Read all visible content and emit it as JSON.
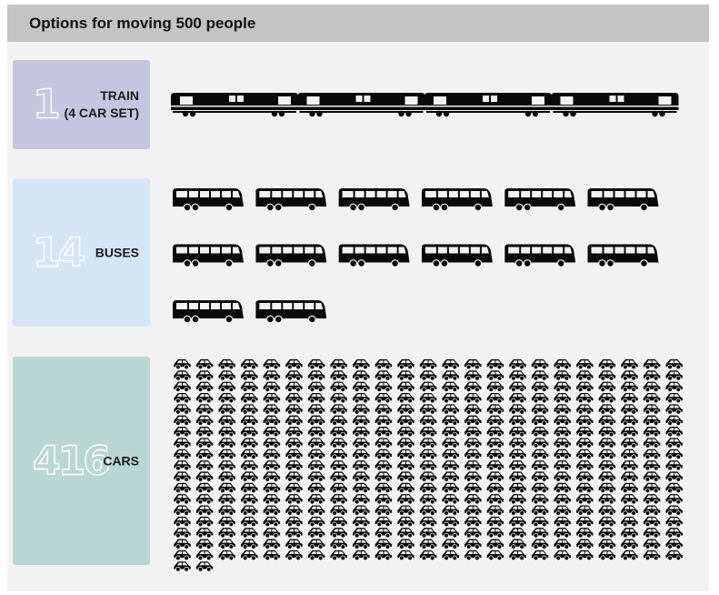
{
  "title": "Options for moving 500 people",
  "colors": {
    "train_box": "#c6c5e0",
    "bus_box": "#d6e5f6",
    "car_box": "#b9d7d2",
    "icon": "#0a0a0a"
  },
  "chart_data": {
    "type": "pictogram",
    "title": "Options for moving 500 people",
    "categories": [
      {
        "key": "train",
        "count_label": "1",
        "label_lines": [
          "TRAIN",
          "(4 CAR SET)"
        ],
        "value": 1,
        "icon": "train-car-icon",
        "icons_shown": 4
      },
      {
        "key": "bus",
        "count_label": "14",
        "label_lines": [
          "BUSES"
        ],
        "value": 14,
        "icon": "bus-icon",
        "icons_shown": 14
      },
      {
        "key": "car",
        "count_label": "416",
        "label_lines": [
          "CARS"
        ],
        "value": 416,
        "icon": "car-icon",
        "icons_shown": 416
      }
    ]
  }
}
